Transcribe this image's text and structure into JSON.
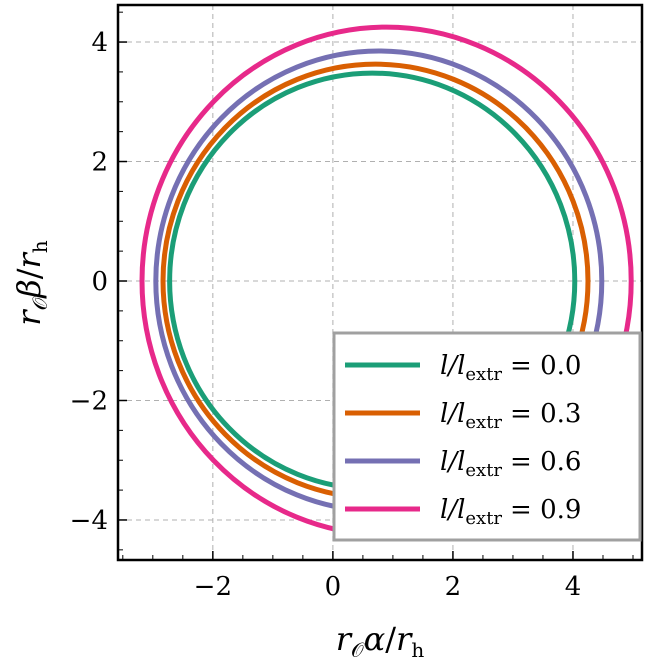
{
  "chart_data": {
    "type": "line",
    "title": "",
    "xlabel": {
      "r": "r",
      "sub1": "𝒪",
      "sym": "α",
      "slash": "/",
      "r2": "r",
      "sub2": "h"
    },
    "ylabel": {
      "r": "r",
      "sub1": "𝒪",
      "sym": "β",
      "slash": "/",
      "r2": "r",
      "sub2": "h"
    },
    "xlim": [
      -3.58,
      5.15
    ],
    "ylim": [
      -4.67,
      4.62
    ],
    "xticks": [
      -2,
      0,
      2,
      4
    ],
    "yticks": [
      -4,
      -2,
      0,
      2,
      4
    ],
    "xtick_labels": [
      "−2",
      "0",
      "2",
      "4"
    ],
    "ytick_labels": [
      "−4",
      "−2",
      "0",
      "2",
      "4"
    ],
    "grid": true,
    "legend_placement": "lower-right",
    "series": [
      {
        "name": "l/l_extr = 0.0",
        "label": {
          "l": "l/l",
          "sub": "extr",
          "eq": "= 0.0"
        },
        "color": "#1b9e77",
        "alpha_min": -2.72,
        "alpha_max": 4.03,
        "beta_max": 3.48
      },
      {
        "name": "l/l_extr = 0.3",
        "label": {
          "l": "l/l",
          "sub": "extr",
          "eq": "= 0.3"
        },
        "color": "#d95f02",
        "alpha_min": -2.83,
        "alpha_max": 4.25,
        "beta_max": 3.63
      },
      {
        "name": "l/l_extr = 0.6",
        "label": {
          "l": "l/l",
          "sub": "extr",
          "eq": "= 0.6"
        },
        "color": "#7570b3",
        "alpha_min": -2.95,
        "alpha_max": 4.48,
        "beta_max": 3.85
      },
      {
        "name": "l/l_extr = 0.9",
        "label": {
          "l": "l/l",
          "sub": "extr",
          "eq": "= 0.9"
        },
        "color": "#e7298a",
        "alpha_min": -3.18,
        "alpha_max": 4.97,
        "beta_max": 4.25
      }
    ]
  }
}
